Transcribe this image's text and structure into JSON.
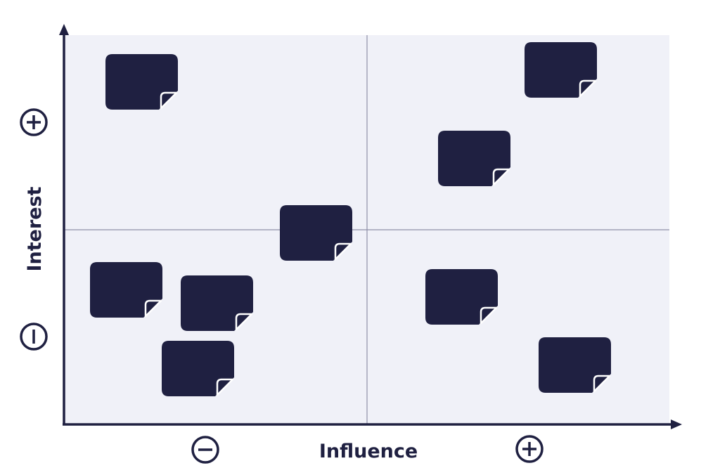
{
  "colors": {
    "background": "#ffffff",
    "plot_area": "#f0f1f8",
    "ink": "#1f2041",
    "grid": "#8e8fa8",
    "note_fold": "#ffffff"
  },
  "axes": {
    "x_label": "Influence",
    "y_label": "Interest",
    "x_low_sign": "−",
    "x_high_sign": "+",
    "y_low_sign": "−",
    "y_high_sign": "+"
  },
  "quadrants": {
    "count": 4,
    "notes": [
      {
        "quadrant": "low-influence-high-interest",
        "icon": "sticky-note-icon"
      },
      {
        "quadrant": "high-influence-high-interest",
        "icon": "sticky-note-icon"
      },
      {
        "quadrant": "high-influence-high-interest",
        "icon": "sticky-note-icon"
      },
      {
        "quadrant": "center",
        "icon": "sticky-note-icon"
      },
      {
        "quadrant": "low-influence-low-interest",
        "icon": "sticky-note-icon"
      },
      {
        "quadrant": "low-influence-low-interest",
        "icon": "sticky-note-icon"
      },
      {
        "quadrant": "low-influence-low-interest",
        "icon": "sticky-note-icon"
      },
      {
        "quadrant": "high-influence-low-interest",
        "icon": "sticky-note-icon"
      },
      {
        "quadrant": "high-influence-low-interest",
        "icon": "sticky-note-icon"
      }
    ]
  }
}
